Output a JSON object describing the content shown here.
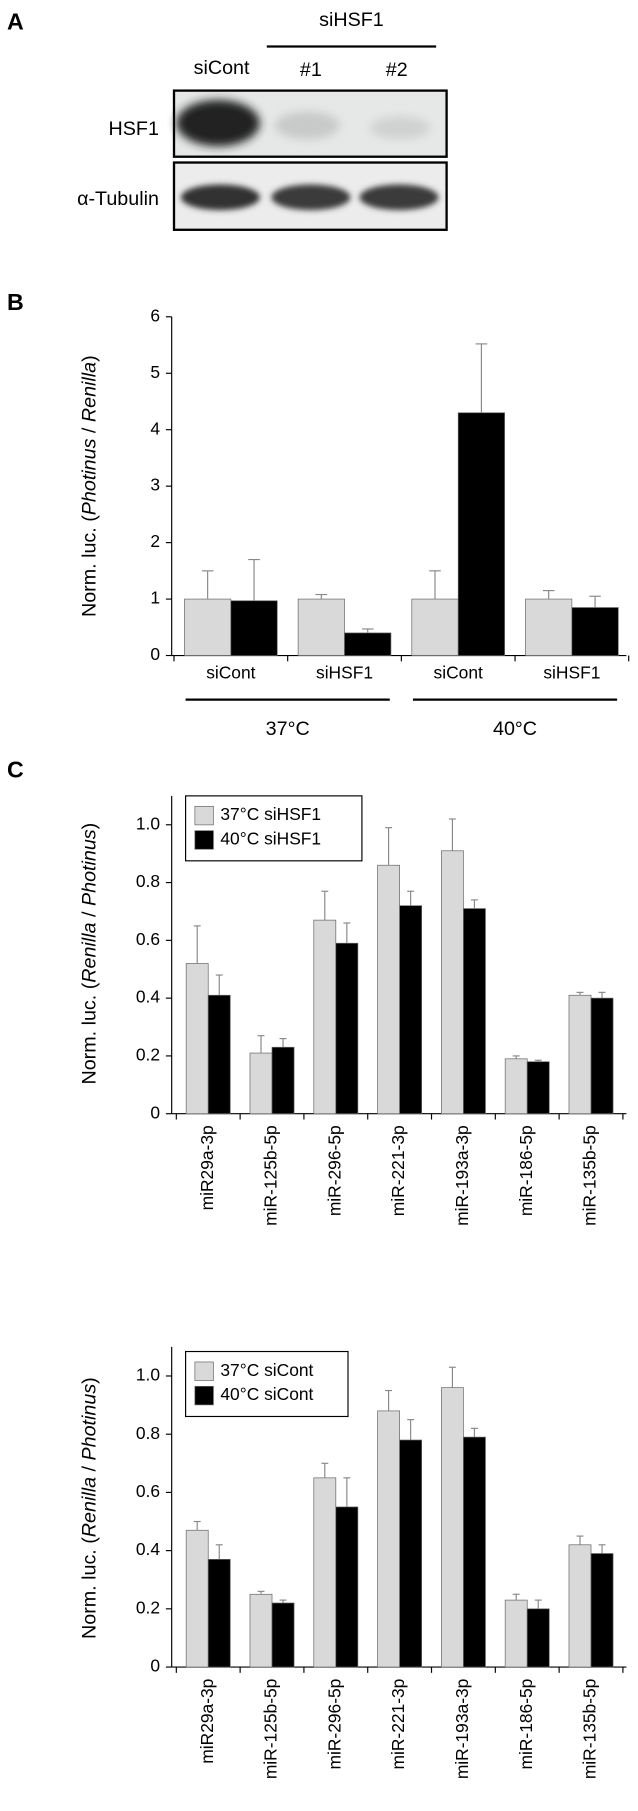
{
  "panel_labels": [
    "A",
    "B",
    "C"
  ],
  "blot": {
    "group_label": "siHSF1",
    "lanes": [
      "siCont",
      "#1",
      "#2"
    ],
    "rows": [
      "HSF1",
      "α-Tubulin"
    ]
  },
  "chart_data": [
    {
      "type": "bar",
      "ylabel": [
        "Norm. luc. (",
        "Photinus",
        " / ",
        "Renilla",
        ")"
      ],
      "categories": [
        "siCont",
        "siHSF1",
        "siCont",
        "siHSF1"
      ],
      "group_labels": [
        "37°C",
        "40°C"
      ],
      "series": [
        {
          "color": "#d9d9d9",
          "values": [
            1,
            1,
            1,
            1
          ],
          "errors": [
            0.5,
            0.08,
            0.5,
            0.15
          ]
        },
        {
          "color": "#000000",
          "values": [
            0.97,
            0.4,
            4.3,
            0.85
          ],
          "errors": [
            0.73,
            0.07,
            1.22,
            0.2
          ]
        }
      ],
      "ylim": [
        0,
        6
      ],
      "yticks": [
        0,
        1,
        2,
        3,
        4,
        5,
        6
      ]
    },
    {
      "type": "bar",
      "ylabel": [
        "Norm. luc. (",
        "Renilla",
        " / ",
        "Photinus",
        ")"
      ],
      "categories": [
        "miR29a-3p",
        "miR-125b-5p",
        "miR-296-5p",
        "miR-221-3p",
        "miR-193a-3p",
        "miR-186-5p",
        "miR-135b-5p"
      ],
      "series": [
        {
          "name": "37°C siHSF1",
          "color": "#d9d9d9",
          "values": [
            0.52,
            0.21,
            0.67,
            0.86,
            0.91,
            0.19,
            0.41
          ],
          "errors": [
            0.13,
            0.06,
            0.1,
            0.13,
            0.11,
            0.01,
            0.01
          ]
        },
        {
          "name": "40°C siHSF1",
          "color": "#000000",
          "values": [
            0.41,
            0.23,
            0.59,
            0.72,
            0.71,
            0.18,
            0.4
          ],
          "errors": [
            0.07,
            0.03,
            0.07,
            0.05,
            0.03,
            0.005,
            0.02
          ]
        }
      ],
      "ylim": [
        0,
        1.1
      ],
      "yticks": [
        0,
        0.2,
        0.4,
        0.6,
        0.8,
        {
          "value": 1,
          "label": "1.0"
        }
      ],
      "legend": "upper left"
    },
    {
      "type": "bar",
      "ylabel": [
        "Norm. luc. (",
        "Renilla",
        " / ",
        "Photinus",
        ")"
      ],
      "categories": [
        "miR29a-3p",
        "miR-125b-5p",
        "miR-296-5p",
        "miR-221-3p",
        "miR-193a-3p",
        "miR-186-5p",
        "miR-135b-5p"
      ],
      "series": [
        {
          "name": "37°C siCont",
          "color": "#d9d9d9",
          "values": [
            0.47,
            0.25,
            0.65,
            0.88,
            0.96,
            0.23,
            0.42
          ],
          "errors": [
            0.03,
            0.01,
            0.05,
            0.07,
            0.07,
            0.02,
            0.03
          ]
        },
        {
          "name": "40°C siCont",
          "color": "#000000",
          "values": [
            0.37,
            0.22,
            0.55,
            0.78,
            0.79,
            0.2,
            0.39
          ],
          "errors": [
            0.05,
            0.01,
            0.1,
            0.07,
            0.03,
            0.03,
            0.03
          ]
        }
      ],
      "ylim": [
        0,
        1.1
      ],
      "yticks": [
        0,
        0.2,
        0.4,
        0.6,
        0.8,
        {
          "value": 1,
          "label": "1.0"
        }
      ],
      "legend": "upper left"
    }
  ]
}
